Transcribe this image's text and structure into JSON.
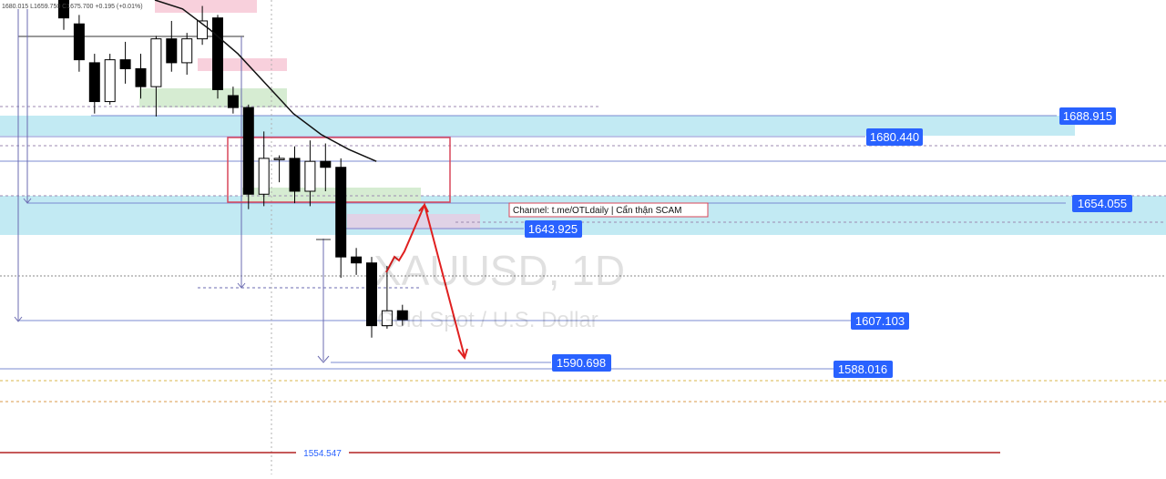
{
  "header": {
    "ohlc_text": "1680.015  L1659.750  C1675.700  +0.195 (+0.01%)"
  },
  "watermark": {
    "symbol": "XAUUSD, 1D",
    "description": "Gold Spot / U.S. Dollar"
  },
  "annotation": {
    "channel_label": "Channel: t.me/OTLdaily | Cẩn thận SCAM"
  },
  "colors": {
    "bull_body": "#ffffff",
    "bear_body": "#000000",
    "price_tag": "#2962ff",
    "level_line": "#7b8bd1",
    "zone_cyan": "#bfe8f2",
    "zone_pink": "#f8d0dc",
    "zone_green": "#d6ecd2",
    "zone_purple": "#e0d2e6",
    "box_red": "#d9465a",
    "arrow_red": "#e02020",
    "ma_line": "#111111",
    "bottom_line": "#b22222"
  },
  "chart_data": {
    "type": "candlestick",
    "symbol": "XAUUSD",
    "timeframe": "1D",
    "price_range": [
      1550,
      1712
    ],
    "grid": false,
    "price_levels": [
      "1688.915",
      "1680.440",
      "1654.055",
      "1643.925",
      "1607.103",
      "1590.698",
      "1588.016",
      "1554.547"
    ],
    "candles": [
      {
        "o": 1712.0,
        "h": 1712.0,
        "l": 1702.0,
        "c": 1706.0
      },
      {
        "o": 1704.0,
        "h": 1707.0,
        "l": 1688.0,
        "c": 1692.0
      },
      {
        "o": 1691.0,
        "h": 1694.0,
        "l": 1674.0,
        "c": 1678.0
      },
      {
        "o": 1678.0,
        "h": 1694.0,
        "l": 1677.0,
        "c": 1692.0
      },
      {
        "o": 1692.0,
        "h": 1698.0,
        "l": 1684.0,
        "c": 1689.0
      },
      {
        "o": 1689.0,
        "h": 1694.0,
        "l": 1679.0,
        "c": 1683.0
      },
      {
        "o": 1683.0,
        "h": 1700.0,
        "l": 1673.0,
        "c": 1699.0
      },
      {
        "o": 1699.0,
        "h": 1705.0,
        "l": 1688.0,
        "c": 1691.0
      },
      {
        "o": 1691.0,
        "h": 1701.0,
        "l": 1687.0,
        "c": 1699.0
      },
      {
        "o": 1699.0,
        "h": 1710.0,
        "l": 1697.0,
        "c": 1705.0
      },
      {
        "o": 1706.0,
        "h": 1707.0,
        "l": 1679.0,
        "c": 1682.0
      },
      {
        "o": 1680.0,
        "h": 1683.0,
        "l": 1674.0,
        "c": 1676.0
      },
      {
        "o": 1676.0,
        "h": 1677.0,
        "l": 1642.0,
        "c": 1647.0
      },
      {
        "o": 1647.0,
        "h": 1668.0,
        "l": 1643.0,
        "c": 1659.0
      },
      {
        "o": 1659.0,
        "h": 1660.0,
        "l": 1651.0,
        "c": 1659.0
      },
      {
        "o": 1659.0,
        "h": 1663.0,
        "l": 1644.0,
        "c": 1648.0
      },
      {
        "o": 1648.0,
        "h": 1665.0,
        "l": 1643.0,
        "c": 1658.0
      },
      {
        "o": 1658.0,
        "h": 1664.0,
        "l": 1648.0,
        "c": 1656.0
      },
      {
        "o": 1656.0,
        "h": 1659.0,
        "l": 1619.0,
        "c": 1626.0
      },
      {
        "o": 1626.0,
        "h": 1629.0,
        "l": 1620.0,
        "c": 1624.0
      },
      {
        "o": 1624.0,
        "h": 1626.0,
        "l": 1599.0,
        "c": 1603.0
      },
      {
        "o": 1603.0,
        "h": 1623.0,
        "l": 1602.0,
        "c": 1608.0
      },
      {
        "o": 1608.0,
        "h": 1610.0,
        "l": 1603.0,
        "c": 1605.0
      }
    ],
    "moving_average": [
      1712.0,
      1709.0,
      1702.0,
      1694.0,
      1684.0,
      1674.0,
      1667.0,
      1662.0,
      1658.0
    ]
  }
}
